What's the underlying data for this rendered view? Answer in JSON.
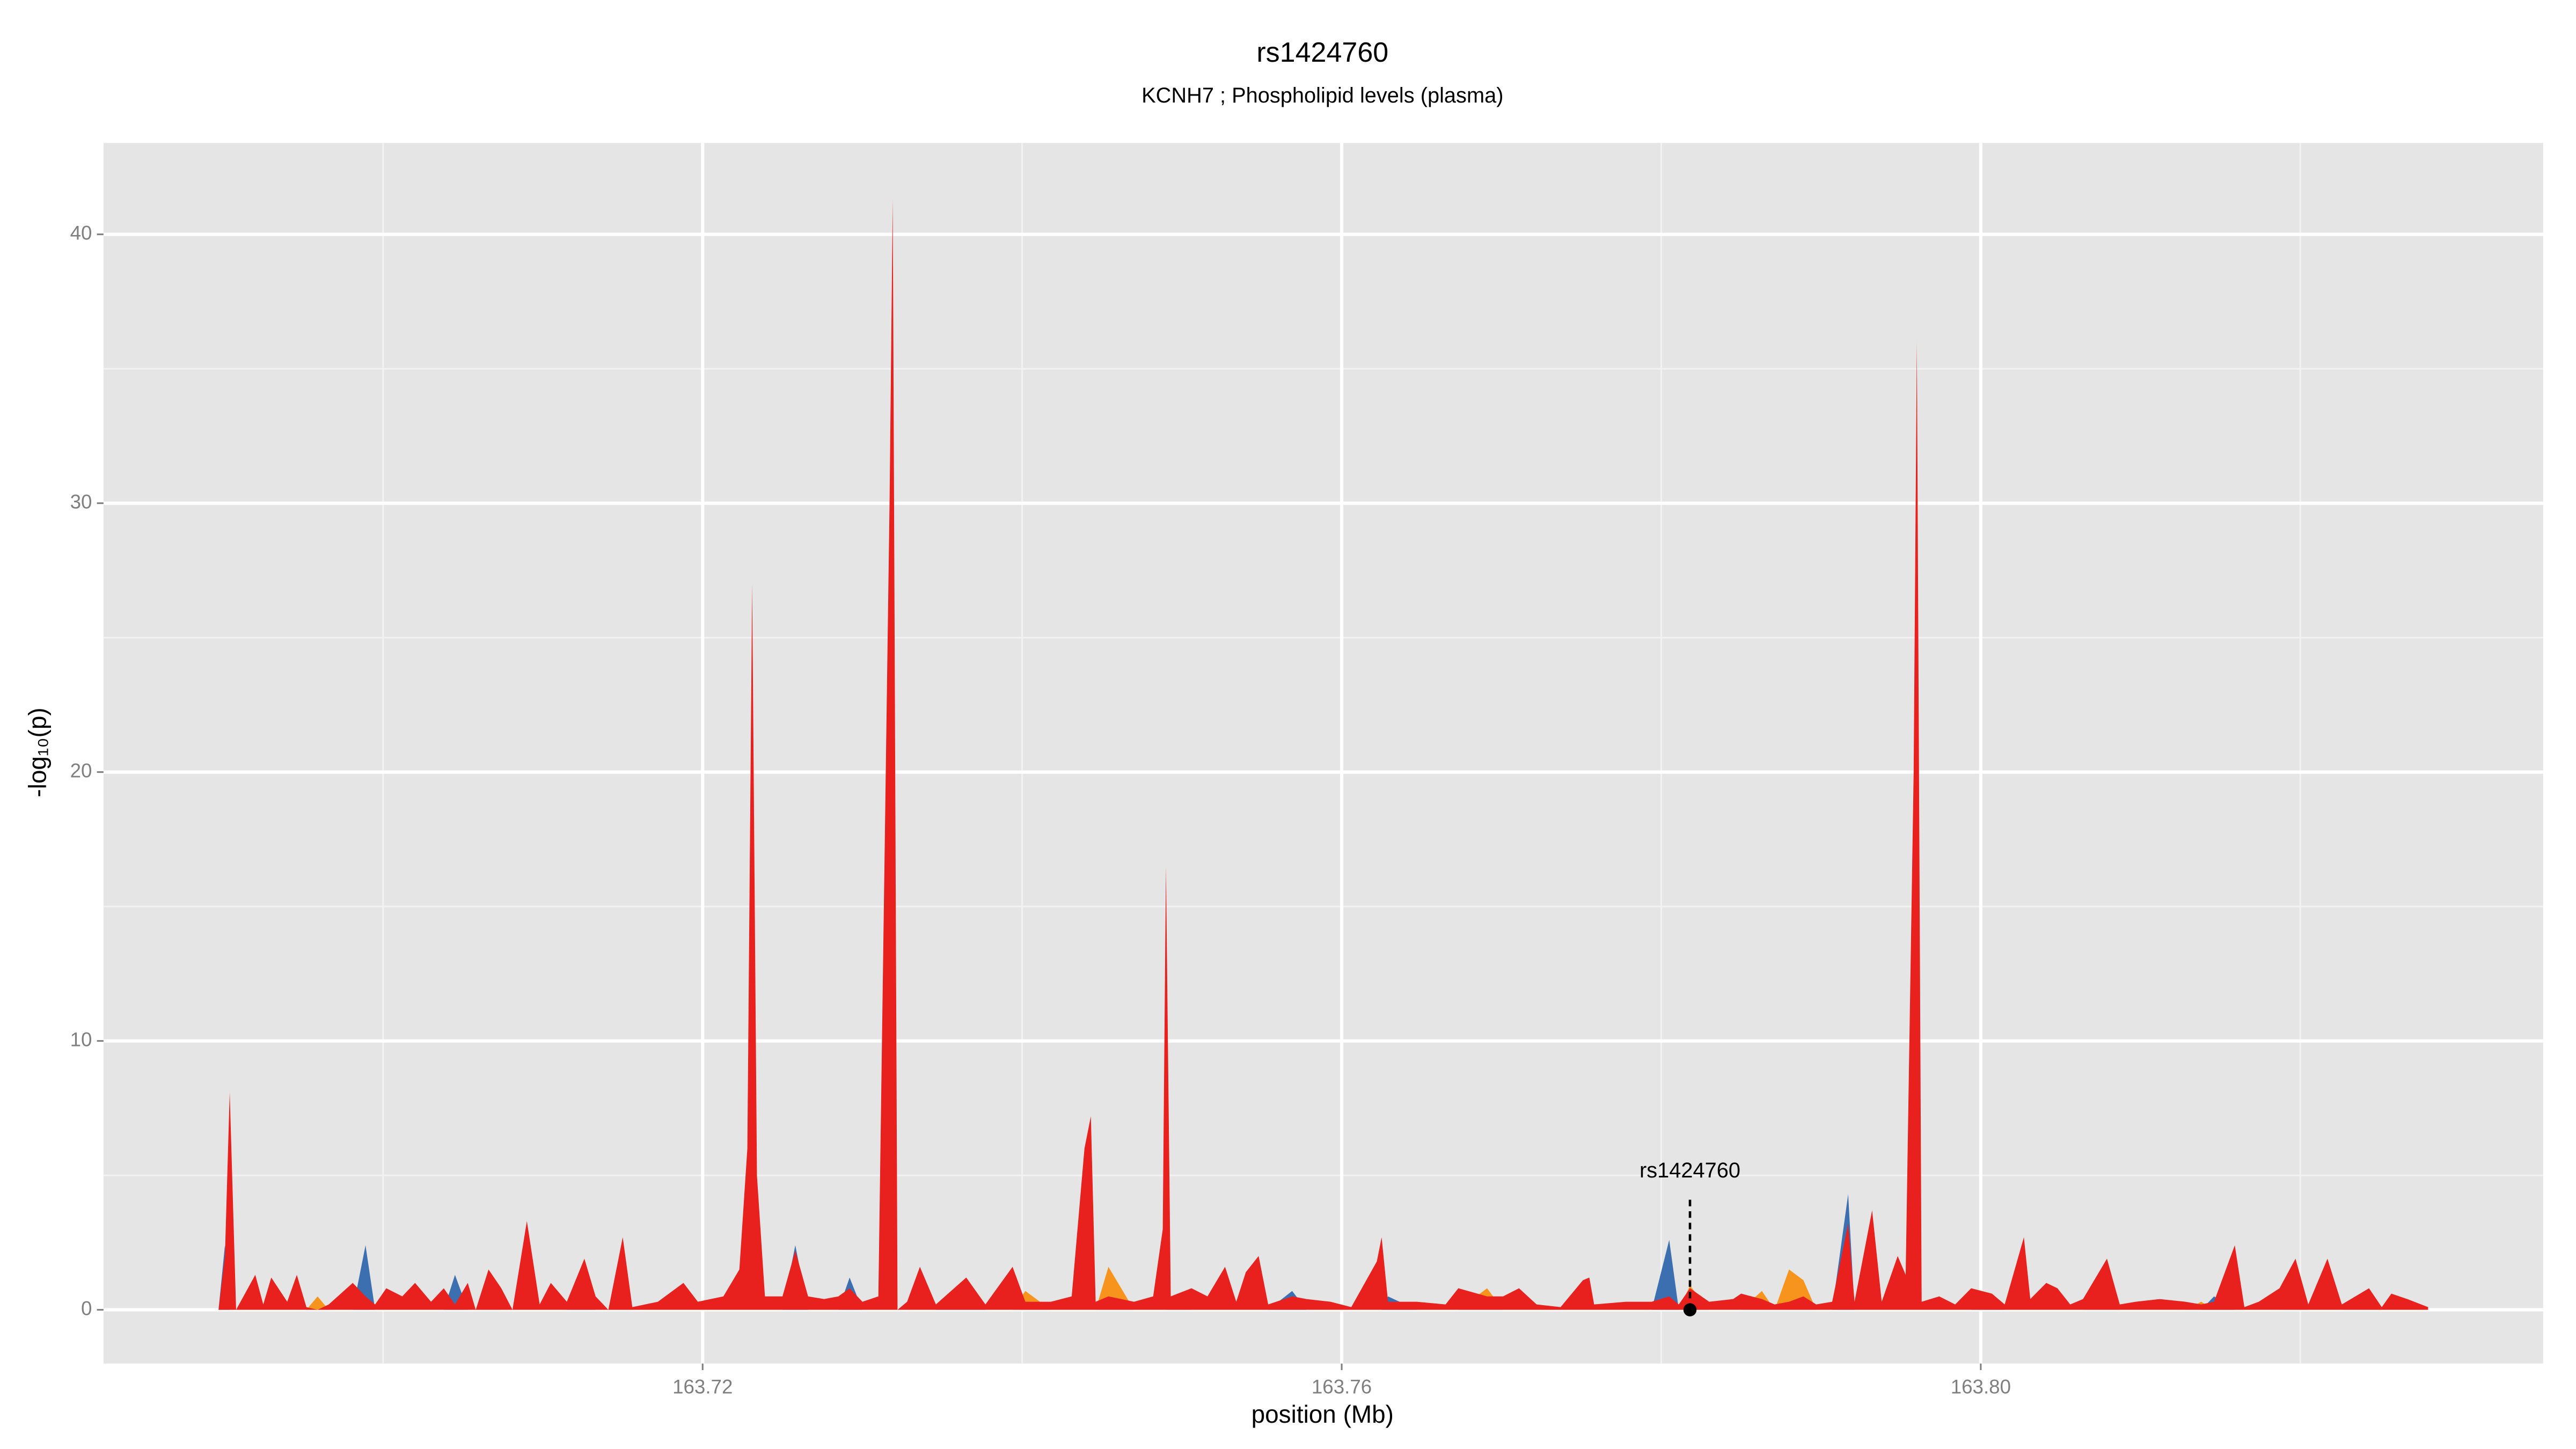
{
  "chart_data": {
    "type": "area",
    "title": "rs1424760",
    "subtitle": "KCNH7 ; Phospholipid levels (plasma)",
    "xlabel": "position (Mb)",
    "ylabel": "-log₁₀(p)",
    "x": [
      163.6897,
      163.6901,
      163.6904,
      163.6908,
      163.692,
      163.6925,
      163.693,
      163.694,
      163.6946,
      163.6952,
      163.6959,
      163.6966,
      163.6981,
      163.6989,
      163.6995,
      163.7002,
      163.7012,
      163.702,
      163.703,
      163.7038,
      163.7045,
      163.7053,
      163.7058,
      163.7066,
      163.7074,
      163.7081,
      163.709,
      163.7098,
      163.7105,
      163.7115,
      163.7126,
      163.7133,
      163.7141,
      163.715,
      163.7156,
      163.7172,
      163.7188,
      163.7197,
      163.7213,
      163.7223,
      163.7228,
      163.7231,
      163.7234,
      163.7239,
      163.725,
      163.7258,
      163.7266,
      163.7276,
      163.7285,
      163.7292,
      163.73,
      163.731,
      163.7317,
      163.7319,
      163.7322,
      163.7328,
      163.7336,
      163.7346,
      163.7365,
      163.7377,
      163.7394,
      163.7402,
      163.7418,
      163.7431,
      163.7439,
      163.7443,
      163.7446,
      163.7454,
      163.747,
      163.7482,
      163.7488,
      163.749,
      163.7493,
      163.7506,
      163.7516,
      163.7527,
      163.7534,
      163.754,
      163.7548,
      163.7554,
      163.7569,
      163.7578,
      163.7593,
      163.7606,
      163.7622,
      163.7625,
      163.7629,
      163.7647,
      163.7665,
      163.7673,
      163.7691,
      163.7701,
      163.7711,
      163.7722,
      163.7737,
      163.7751,
      163.7755,
      163.7758,
      163.7778,
      163.7794,
      163.7805,
      163.7811,
      163.7818,
      163.783,
      163.7845,
      163.785,
      163.7863,
      163.7871,
      163.788,
      163.7889,
      163.7897,
      163.7907,
      163.7917,
      163.7921,
      163.7932,
      163.7938,
      163.7948,
      163.7953,
      163.7958,
      163.796,
      163.7963,
      163.7974,
      163.7984,
      163.7994,
      163.8007,
      163.8015,
      163.8027,
      163.8031,
      163.8041,
      163.8048,
      163.8056,
      163.8064,
      163.8079,
      163.8087,
      163.8097,
      163.8112,
      163.8128,
      163.8138,
      163.8146,
      163.8159,
      163.8165,
      163.8174,
      163.8187,
      163.8197,
      163.8205,
      163.8217,
      163.8226,
      163.8243,
      163.8251,
      163.8257,
      163.8267,
      163.828
    ],
    "series": [
      {
        "color": "#3b6fb0",
        "values": [
          0,
          2.4,
          0,
          0,
          0,
          0,
          0,
          0,
          0,
          0,
          0,
          0,
          0,
          2.4,
          0,
          0,
          0,
          0,
          0,
          0,
          1.3,
          0,
          0,
          0,
          0,
          0,
          0,
          0,
          0,
          0,
          1.4,
          0,
          0,
          0,
          0,
          0,
          0,
          0,
          0,
          0,
          0,
          0,
          0,
          0,
          0,
          2.4,
          0,
          0,
          0,
          1.2,
          0,
          0,
          0,
          0,
          0,
          0,
          0,
          0,
          1.2,
          0,
          0,
          0,
          0,
          0,
          0,
          0,
          0,
          0,
          0,
          0,
          0,
          0,
          0,
          0,
          0,
          0,
          0,
          0,
          0,
          0,
          0.7,
          0,
          0,
          0,
          0,
          0,
          0.5,
          0,
          0,
          0,
          0,
          0,
          0,
          0,
          0,
          0,
          0,
          0,
          0,
          0,
          2.6,
          0,
          0,
          0,
          0,
          0,
          0,
          0,
          0,
          0,
          0,
          0,
          4.3,
          0,
          0,
          0,
          0,
          0,
          0,
          0,
          0,
          0,
          0,
          0,
          0.5,
          0,
          0,
          0,
          0,
          0,
          0,
          0,
          0,
          0,
          0,
          0,
          0,
          0,
          0.5,
          0,
          0,
          0,
          0,
          0,
          0,
          0,
          0,
          0,
          0,
          0,
          0,
          0
        ]
      },
      {
        "color": "#f7941d",
        "values": [
          0,
          0,
          0,
          0,
          0,
          0,
          0,
          0,
          0,
          0,
          0.5,
          0,
          0,
          0,
          0,
          0,
          0,
          0,
          0,
          0,
          0,
          0,
          0,
          1.3,
          0,
          0,
          0,
          0,
          0,
          0,
          0,
          0,
          0,
          2.5,
          0,
          0,
          0,
          0,
          0,
          0,
          0,
          0,
          0,
          0,
          0,
          0,
          0,
          0,
          0,
          0,
          0,
          0,
          0,
          0,
          0,
          0,
          0,
          0,
          0,
          0,
          0,
          0.7,
          0,
          0,
          0,
          0,
          0,
          1.6,
          0,
          0,
          0,
          0,
          0.3,
          0,
          0,
          0,
          0,
          0,
          0,
          0,
          0,
          0,
          0,
          0,
          0,
          0,
          0,
          0,
          0,
          0,
          0.8,
          0,
          0,
          0,
          0,
          0,
          0,
          0,
          0,
          0,
          0,
          0,
          0.9,
          0,
          0,
          0,
          0.7,
          0,
          1.5,
          1.1,
          0,
          0,
          0,
          0,
          0,
          0,
          0,
          0,
          0,
          0,
          0,
          0,
          0,
          0,
          0,
          0,
          0,
          0,
          0,
          0,
          0,
          0,
          1.6,
          0,
          0,
          0,
          0,
          0.3,
          0,
          2.2,
          0,
          0,
          0,
          1.8,
          0,
          0,
          0,
          0.7,
          0,
          0,
          0,
          0
        ]
      },
      {
        "color": "#e8211f",
        "values": [
          0,
          2,
          8.1,
          0,
          1.3,
          0.2,
          1.2,
          0.3,
          1.3,
          0.1,
          0,
          0.2,
          1.0,
          0.5,
          0.2,
          0.8,
          0.5,
          1.0,
          0.3,
          0.8,
          0.2,
          1.0,
          0,
          1.5,
          0.8,
          0,
          3.3,
          0.2,
          1.0,
          0.3,
          1.9,
          0.5,
          0,
          2.7,
          0.1,
          0.3,
          1.0,
          0.3,
          0.5,
          1.5,
          6,
          27,
          5,
          0.5,
          0.5,
          2.2,
          0.5,
          0.4,
          0.5,
          0.8,
          0.3,
          0.5,
          30,
          41.3,
          0,
          0.3,
          1.6,
          0.2,
          1.2,
          0.2,
          1.6,
          0.3,
          0.3,
          0.5,
          6,
          7.2,
          0.3,
          0.5,
          0.3,
          0.5,
          3,
          16.5,
          0.5,
          0.8,
          0.5,
          1.6,
          0.3,
          1.4,
          2.0,
          0.2,
          0.5,
          0.4,
          0.3,
          0.1,
          1.8,
          2.7,
          0.3,
          0.3,
          0.2,
          0.8,
          0.5,
          0.5,
          0.8,
          0.2,
          0.1,
          1.1,
          1.2,
          0.2,
          0.3,
          0.3,
          0.5,
          0.2,
          0.8,
          0.3,
          0.4,
          0.6,
          0.4,
          0.2,
          0.3,
          0.5,
          0.2,
          0.3,
          3.2,
          0.3,
          3.7,
          0.3,
          2.0,
          1.3,
          20,
          36,
          0.3,
          0.5,
          0.2,
          0.8,
          0.6,
          0.2,
          2.7,
          0.4,
          1.0,
          0.8,
          0.2,
          0.4,
          1.9,
          0.2,
          0.3,
          0.4,
          0.3,
          0.2,
          0.3,
          2.4,
          0.1,
          0.3,
          0.8,
          1.9,
          0.2,
          1.9,
          0.2,
          0.8,
          0.1,
          0.6,
          0.4,
          0.1
        ]
      }
    ],
    "xlim": [
      163.6825,
      163.8352
    ],
    "ylim": [
      -2.0,
      43.4
    ],
    "xticks": [
      163.72,
      163.76,
      {
        "value": 163.8,
        "label": "163.80"
      }
    ],
    "yticks": [
      0,
      10,
      20,
      30,
      40
    ],
    "x_minor_grid": [
      163.7,
      163.74,
      163.78,
      163.82
    ],
    "y_minor_grid": [
      5,
      15,
      25,
      35
    ],
    "grid": true,
    "annotation": {
      "text": "rs1424760",
      "x": 163.7818,
      "y": 0
    }
  }
}
